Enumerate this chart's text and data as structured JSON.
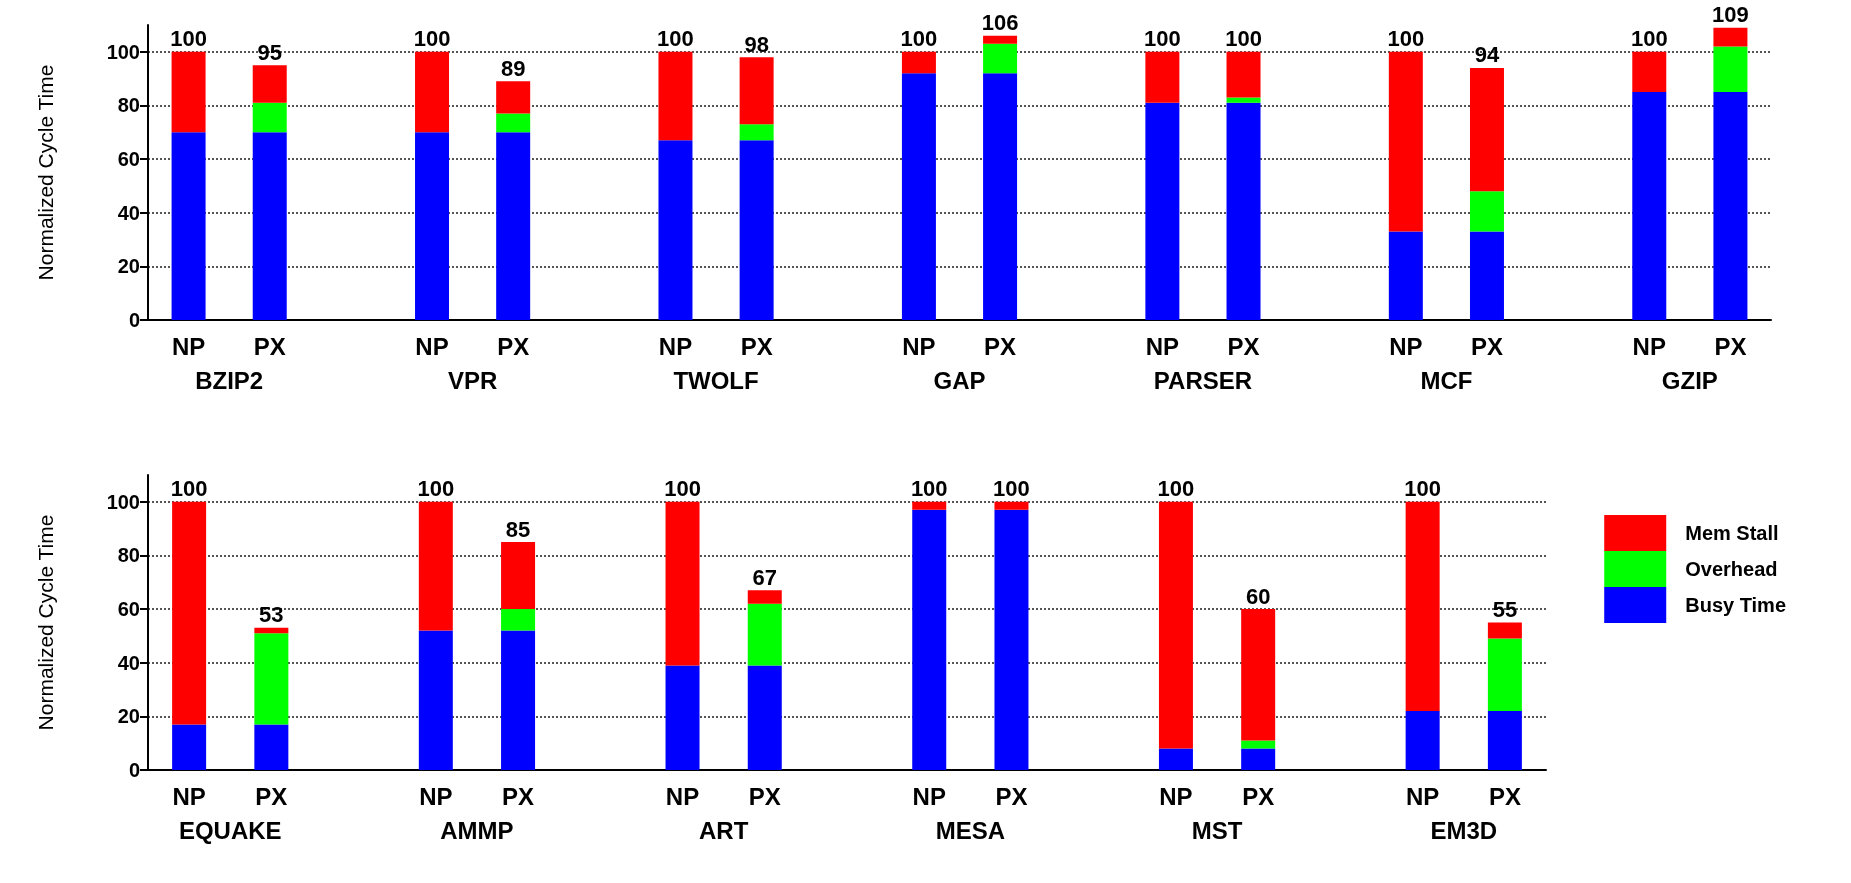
{
  "chart_data": [
    {
      "type": "bar",
      "stacked": true,
      "ylabel": "Normalized Cycle Time",
      "ylim": [
        0,
        110
      ],
      "yticks": [
        0,
        20,
        40,
        60,
        80,
        100
      ],
      "grid": "y",
      "legend": false,
      "categories": [
        "NP",
        "PX",
        null,
        "NP",
        "PX",
        null,
        "NP",
        "PX",
        null,
        "NP",
        "PX",
        null,
        "NP",
        "PX",
        null,
        "NP",
        "PX",
        null,
        "NP",
        "PX"
      ],
      "annotations": [
        "BZIP2",
        "VPR",
        "TWOLF",
        "GAP",
        "PARSER",
        "MCF",
        "GZIP"
      ],
      "totals": [
        "100",
        "95",
        null,
        "100",
        "89",
        null,
        "100",
        "98",
        null,
        "100",
        "106",
        null,
        "100",
        "100",
        null,
        "100",
        "94",
        null,
        "100",
        "109"
      ],
      "series": [
        {
          "color": "#0000ff",
          "values": [
            70,
            70,
            null,
            70,
            70,
            null,
            67,
            67,
            null,
            92,
            92,
            null,
            81,
            81,
            null,
            33,
            33,
            null,
            85,
            85
          ]
        },
        {
          "color": "#00ff00",
          "values": [
            0,
            11,
            null,
            0,
            7,
            null,
            0,
            6,
            null,
            0,
            11,
            null,
            0,
            2,
            null,
            0,
            15,
            null,
            0,
            17
          ]
        },
        {
          "color": "#ff0000",
          "values": [
            30,
            14,
            null,
            30,
            12,
            null,
            33,
            25,
            null,
            8,
            3,
            null,
            19,
            17,
            null,
            67,
            46,
            null,
            15,
            7
          ]
        }
      ]
    },
    {
      "type": "bar",
      "stacked": true,
      "ylabel": "Normalized Cycle Time",
      "ylim": [
        0,
        110
      ],
      "yticks": [
        0,
        20,
        40,
        60,
        80,
        100
      ],
      "grid": "y",
      "legend": "right",
      "categories": [
        "NP",
        "PX",
        null,
        "NP",
        "PX",
        null,
        "NP",
        "PX",
        null,
        "NP",
        "PX",
        null,
        "NP",
        "PX",
        null,
        "NP",
        "PX"
      ],
      "annotations": [
        "EQUAKE",
        "AMMP",
        "ART",
        "MESA",
        "MST",
        "EM3D"
      ],
      "totals": [
        "100",
        "53",
        null,
        "100",
        "85",
        null,
        "100",
        "67",
        null,
        "100",
        "100",
        null,
        "100",
        "60",
        null,
        "100",
        "55"
      ],
      "series": [
        {
          "name": "Busy Time",
          "color": "#0000ff",
          "values": [
            17,
            17,
            null,
            52,
            52,
            null,
            39,
            39,
            null,
            97,
            97,
            null,
            8,
            8,
            null,
            22,
            22
          ]
        },
        {
          "name": "Overhead",
          "color": "#00ff00",
          "values": [
            0,
            34,
            null,
            0,
            8,
            null,
            0,
            23,
            null,
            0,
            0,
            null,
            0,
            3,
            null,
            0,
            27
          ]
        },
        {
          "name": "Mem Stall",
          "color": "#ff0000",
          "values": [
            83,
            2,
            null,
            48,
            25,
            null,
            61,
            5,
            null,
            3,
            3,
            null,
            92,
            49,
            null,
            78,
            6
          ]
        }
      ]
    }
  ]
}
